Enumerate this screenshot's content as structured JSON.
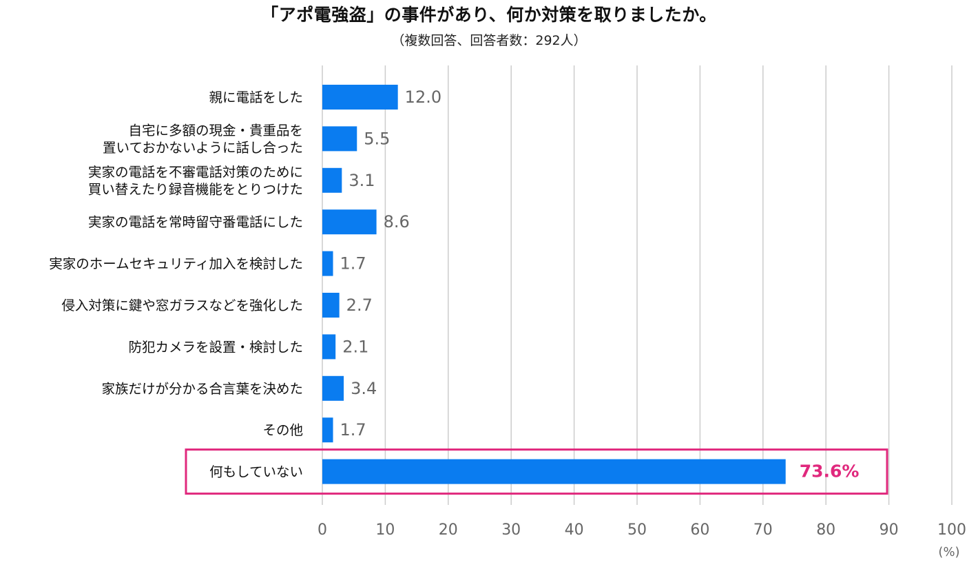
{
  "title": "「アポ電強盗」の事件があり、何か対策を取りましたか。",
  "subtitle": "（複数回答、回答者数：292人）",
  "colors": {
    "bar": "#0a7cf0",
    "highlight": "#e0287d",
    "grid": "#cccccc",
    "value_text": "#666666"
  },
  "chart_data": {
    "type": "bar",
    "orientation": "horizontal",
    "categories": [
      [
        "親に電話をした"
      ],
      [
        "自宅に多額の現金・貴重品を",
        "置いておかないように話し合った"
      ],
      [
        "実家の電話を不審電話対策のために",
        "買い替えたり録音機能をとりつけた"
      ],
      [
        "実家の電話を常時留守番電話にした"
      ],
      [
        "実家のホームセキュリティ加入を検討した"
      ],
      [
        "侵入対策に鍵や窓ガラスなどを強化した"
      ],
      [
        "防犯カメラを設置・検討した"
      ],
      [
        "家族だけが分かる合言葉を決めた"
      ],
      [
        "その他"
      ],
      [
        "何もしていない"
      ]
    ],
    "values": [
      12.0,
      5.5,
      3.1,
      8.6,
      1.7,
      2.7,
      2.1,
      3.4,
      1.7,
      73.6
    ],
    "value_labels": [
      "12.0",
      "5.5",
      "3.1",
      "8.6",
      "1.7",
      "2.7",
      "2.1",
      "3.4",
      "1.7",
      "73.6%"
    ],
    "highlight_index": 9,
    "xlim": [
      0,
      100
    ],
    "xticks": [
      0,
      10,
      20,
      30,
      40,
      50,
      60,
      70,
      80,
      90,
      100
    ],
    "xunit": "(%)",
    "grid": true
  }
}
